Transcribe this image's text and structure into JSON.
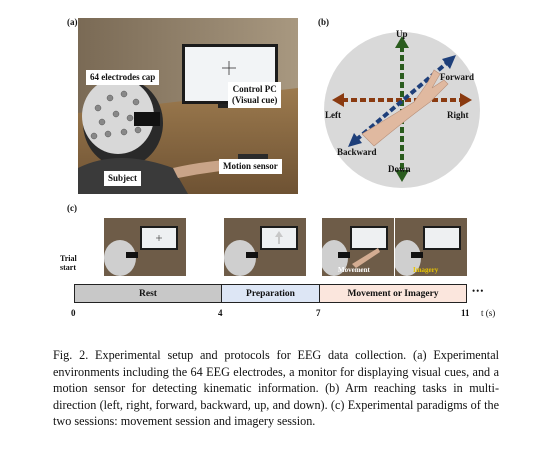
{
  "figure": {
    "a": {
      "label": "(a)",
      "callouts": {
        "cap": "64 electrodes cap",
        "pc_line1": "Control PC",
        "pc_line2": "(Visual cue)",
        "subject": "Subject",
        "sensor": "Motion sensor"
      }
    },
    "b": {
      "label": "(b)",
      "directions": {
        "up": "Up",
        "down": "Down",
        "left": "Left",
        "right": "Right",
        "forward": "Forward",
        "backward": "Backward"
      }
    },
    "c": {
      "label": "(c)",
      "trial_start_line1": "Trial",
      "trial_start_line2": "start",
      "segments": {
        "rest": "Rest",
        "preparation": "Preparation",
        "movement": "Movement or Imagery"
      },
      "ticks": {
        "t0": "0",
        "t4": "4",
        "t7": "7",
        "t11": "11"
      },
      "axis_unit": "t (s)",
      "ellipsis": "•••",
      "thumb_labels": {
        "movement": "Movement",
        "imagery": "Imagery"
      },
      "colors": {
        "rest": "#c8c8c8",
        "preparation": "#dde6f5",
        "movement": "#fbe6dd",
        "imagery_text": "#e8c400"
      }
    }
  },
  "caption": "Fig. 2.  Experimental setup and protocols for EEG data collection. (a) Experimental environments including the 64 EEG electrodes, a monitor for displaying visual cues, and a motion sensor for detecting kinematic information. (b) Arm reaching tasks in multi-direction (left, right, forward, backward, up, and down). (c) Experimental paradigms of the two sessions: movement session and imagery session."
}
